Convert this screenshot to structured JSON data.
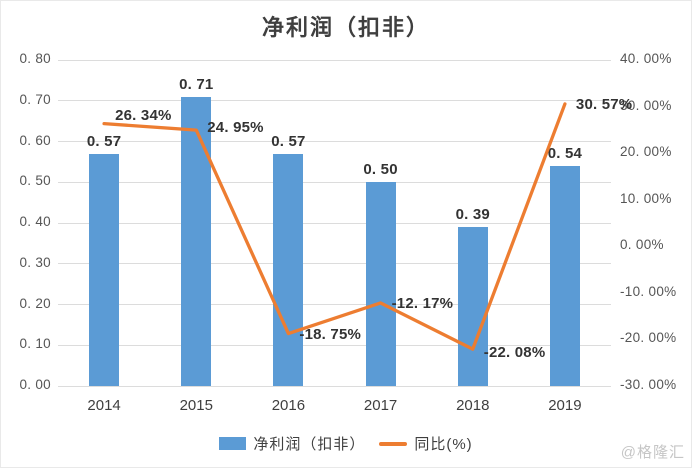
{
  "title": "净利润（扣非）",
  "watermark": "@格隆汇",
  "chart_data": {
    "type": "bar",
    "subtype": "combo-bar-line-dual-axis",
    "title": "净利润（扣非）",
    "categories": [
      "2014",
      "2015",
      "2016",
      "2017",
      "2018",
      "2019"
    ],
    "series": [
      {
        "name": "净利润（扣非）",
        "type": "bar",
        "axis": "left",
        "color": "#5B9BD5",
        "values": [
          0.57,
          0.71,
          0.57,
          0.5,
          0.39,
          0.54
        ],
        "labels": [
          "0. 57",
          "0. 71",
          "0. 57",
          "0. 50",
          "0. 39",
          "0. 54"
        ]
      },
      {
        "name": "同比(%)",
        "type": "line",
        "axis": "right",
        "color": "#ED7D31",
        "values": [
          26.34,
          24.95,
          -18.75,
          -12.17,
          -22.08,
          30.57
        ],
        "labels": [
          "26. 34%",
          "24. 95%",
          "-18. 75%",
          "-12. 17%",
          "-22. 08%",
          "30. 57%"
        ]
      }
    ],
    "left_axis": {
      "min": 0,
      "max": 0.8,
      "step": 0.1,
      "tick_labels": [
        "0. 00",
        "0. 10",
        "0. 20",
        "0. 30",
        "0. 40",
        "0. 50",
        "0. 60",
        "0. 70",
        "0. 80"
      ]
    },
    "right_axis": {
      "min": -30,
      "max": 40,
      "step": 10,
      "tick_labels": [
        "-30. 00%",
        "-20. 00%",
        "-10. 00%",
        "0. 00%",
        "10. 00%",
        "20. 00%",
        "30. 00%",
        "40. 00%"
      ]
    },
    "grid": true,
    "legend_position": "bottom"
  }
}
